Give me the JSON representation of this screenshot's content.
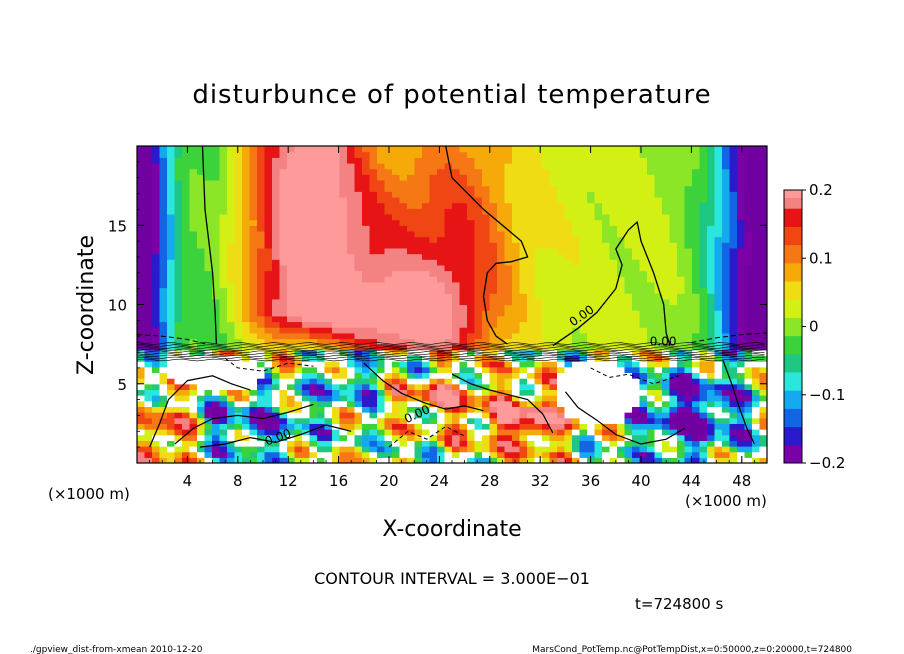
{
  "chart_data": {
    "type": "heatmap",
    "title": "disturbunce of potential temperature",
    "xlabel": "X-coordinate",
    "ylabel": "Z-coordinate",
    "x_unit_left": "(×1000 m)",
    "x_unit_right": "(×1000 m)",
    "xlim": [
      0,
      50
    ],
    "ylim": [
      0,
      20
    ],
    "x_ticks": [
      4,
      8,
      12,
      16,
      20,
      24,
      28,
      32,
      36,
      40,
      44,
      48
    ],
    "y_ticks": [
      5,
      10,
      15
    ],
    "colorbar": {
      "range": [
        -0.2,
        0.2
      ],
      "ticks": [
        0.2,
        0.1,
        0,
        -0.1,
        -0.2
      ],
      "tick_labels": [
        "0.2",
        "0.1",
        "0",
        "−0.1",
        "−0.2"
      ],
      "colors": [
        "#7a00a8",
        "#2a1acc",
        "#1464e6",
        "#14aaf0",
        "#2ae6dc",
        "#1ec882",
        "#3cd23c",
        "#8ce628",
        "#d2f014",
        "#f0dc14",
        "#f5aa0a",
        "#f57814",
        "#f04614",
        "#e61414",
        "#f58282"
      ]
    },
    "contour_labels": [
      "0.00",
      "0.00",
      "0.00",
      "0.00"
    ],
    "contour_interval_text": "CONTOUR INTERVAL = 3.000E−01",
    "time_label": "t=724800 s"
  },
  "footer": {
    "left": "./gpview_dist-from-xmean  2010-12-20",
    "right": "MarsCond_PotTemp.nc@PotTempDist,x=0:50000,z=0:20000,t=724800"
  }
}
